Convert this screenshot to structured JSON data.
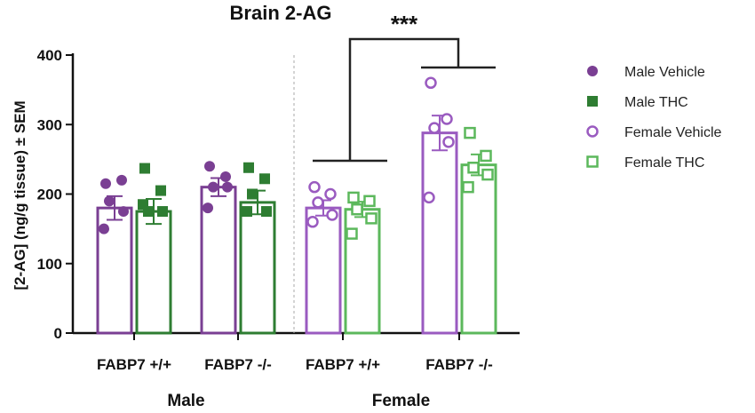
{
  "chart_data": {
    "type": "bar",
    "title": "Brain 2-AG",
    "ylabel": "[2-AG] (ng/g tissue) ± SEM",
    "ylim": [
      0,
      400
    ],
    "yticks": [
      0,
      100,
      200,
      300,
      400
    ],
    "categories": [
      "FABP7 +/+",
      "FABP7 -/-",
      "FABP7 +/+",
      "FABP7 -/-"
    ],
    "groups": [
      {
        "label": "Male",
        "categories": [
          0,
          1
        ]
      },
      {
        "label": "Female",
        "categories": [
          2,
          3
        ]
      }
    ],
    "series": [
      {
        "name": "Male Vehicle",
        "color": "#7a3f93",
        "marker": "filled-circle",
        "bars": [
          {
            "category": 0,
            "value": 180,
            "sem": 17,
            "points": [
              215,
              220,
              190,
              175,
              150
            ]
          },
          {
            "category": 1,
            "value": 210,
            "sem": 13,
            "points": [
              240,
              225,
              210,
              210,
              180
            ]
          }
        ]
      },
      {
        "name": "Male THC",
        "color": "#2e7d32",
        "marker": "filled-square",
        "bars": [
          {
            "category": 0,
            "value": 175,
            "sem": 18,
            "points": [
              237,
              205,
              175,
              175,
              185
            ]
          },
          {
            "category": 1,
            "value": 188,
            "sem": 17,
            "points": [
              238,
              222,
              200,
              175,
              175
            ]
          }
        ]
      },
      {
        "name": "Female Vehicle",
        "color": "#9a5bc0",
        "marker": "open-circle",
        "bars": [
          {
            "category": 2,
            "value": 180,
            "sem": 11,
            "points": [
              210,
              200,
              188,
              170,
              160
            ]
          },
          {
            "category": 3,
            "value": 288,
            "sem": 25,
            "points": [
              360,
              308,
              295,
              275,
              195
            ]
          }
        ]
      },
      {
        "name": "Female THC",
        "color": "#5cb85c",
        "marker": "open-square",
        "bars": [
          {
            "category": 2,
            "value": 178,
            "sem": 11,
            "points": [
              195,
              190,
              178,
              165,
              143
            ]
          },
          {
            "category": 3,
            "value": 242,
            "sem": 15,
            "points": [
              288,
              255,
              238,
              228,
              210
            ]
          }
        ]
      }
    ],
    "legend": {
      "placement": "right"
    },
    "annotations": [
      {
        "text": "***",
        "between": [
          "Female FABP7 +/+",
          "Female FABP7 -/-"
        ]
      }
    ],
    "grid": false
  }
}
